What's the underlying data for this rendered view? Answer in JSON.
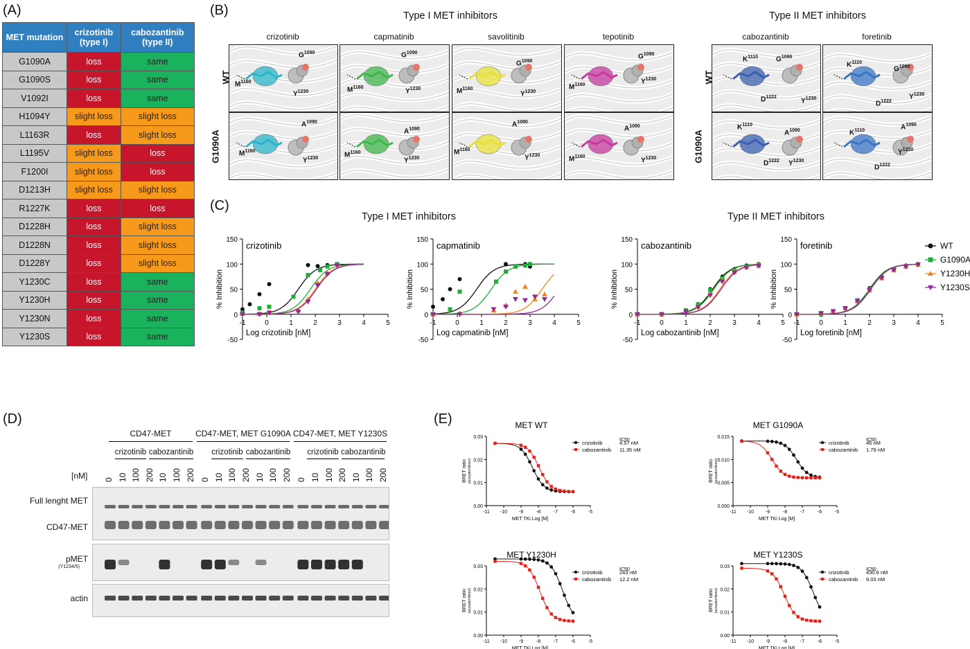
{
  "panels": {
    "A": "(A)",
    "B": "(B)",
    "C": "(C)",
    "D": "(D)",
    "E": "(E)"
  },
  "tableA": {
    "headers": [
      "MET mutation",
      "crizotinib\n(type I)",
      "cabozantinib\n(type II)"
    ],
    "header_lines": [
      [
        "MET mutation"
      ],
      [
        "crizotinib",
        "(type I)"
      ],
      [
        "cabozantinib",
        "(type II)"
      ]
    ],
    "rows": [
      [
        "G1090A",
        "loss",
        "same"
      ],
      [
        "G1090S",
        "loss",
        "same"
      ],
      [
        "V1092I",
        "loss",
        "same"
      ],
      [
        "H1094Y",
        "slight loss",
        "slight loss"
      ],
      [
        "L1163R",
        "loss",
        "slight loss"
      ],
      [
        "L1195V",
        "slight loss",
        "loss"
      ],
      [
        "F1200I",
        "slight loss",
        "loss"
      ],
      [
        "D1213H",
        "slight loss",
        "slight loss"
      ],
      [
        "R1227K",
        "loss",
        "loss"
      ],
      [
        "D1228H",
        "loss",
        "slight loss"
      ],
      [
        "D1228N",
        "loss",
        "slight loss"
      ],
      [
        "D1228Y",
        "loss",
        "slight loss"
      ],
      [
        "Y1230C",
        "loss",
        "same"
      ],
      [
        "Y1230H",
        "loss",
        "same"
      ],
      [
        "Y1230N",
        "loss",
        "same"
      ],
      [
        "Y1230S",
        "loss",
        "same"
      ]
    ],
    "colors": {
      "loss": "#c7162b",
      "slight loss": "#f79a1c",
      "same": "#1ab25c",
      "header": "#2f7fc1",
      "mutation": "#c8c8c8"
    }
  },
  "panelB": {
    "group1": "Type I MET inhibitors",
    "group2": "Type II MET inhibitors",
    "drugs": [
      "crizotinib",
      "capmatinib",
      "savolitinib",
      "tepotinib",
      "cabozantinib",
      "foretinib"
    ],
    "rows": [
      "WT",
      "G1090A"
    ],
    "ligand_colors": [
      "#2bb5c9",
      "#3fb649",
      "#e8e03a",
      "#c6399e",
      "#3a5fb0",
      "#3a75c4"
    ]
  },
  "panelC": {
    "group1": "Type I MET inhibitors",
    "group2": "Type II MET inhibitors",
    "ylabel": "% Inhibition",
    "legend": [
      "WT",
      "G1090A",
      "Y1230H",
      "Y1230S"
    ]
  },
  "panelD": {
    "groups": [
      "CD47-MET",
      "CD47-MET, MET G1090A",
      "CD47-MET, MET Y1230S"
    ],
    "drug_labels": [
      "crizotinib",
      "cabozantinib"
    ],
    "conc_label": "[nM]",
    "lanes": [
      "0",
      "10",
      "100",
      "200",
      "10",
      "100",
      "200",
      "0",
      "10",
      "100",
      "200",
      "10",
      "100",
      "200",
      "0",
      "10",
      "100",
      "200",
      "10",
      "100",
      "200"
    ],
    "rows": [
      "Full lenght MET",
      "CD47-MET",
      "pMET",
      "actin"
    ],
    "pmet_sub": "(Y1234/5)"
  },
  "panelE": {
    "ylabel": "BRET ratio",
    "ylabel_sub": "(acceptor/donor)",
    "xlabel": "MET TKi Log [M]",
    "ic50_label": "IC50"
  },
  "chart_data": [
    {
      "type": "line",
      "title": "crizotinib",
      "xlabel": "Log crizotinib [nM]",
      "ylabel": "% Inhibition",
      "xlim": [
        -1,
        5
      ],
      "ylim": [
        -50,
        150
      ],
      "xticks": [
        -1,
        0,
        1,
        2,
        3,
        4,
        5
      ],
      "yticks": [
        -50,
        0,
        50,
        100,
        150
      ],
      "series": [
        {
          "name": "WT",
          "x": [
            -1,
            -0.7,
            -0.3,
            0.1,
            1.7,
            2.1,
            2.5,
            2.9
          ],
          "y": [
            10,
            20,
            40,
            60,
            98,
            96,
            98,
            100
          ],
          "ic50": 1.3
        },
        {
          "name": "G1090A",
          "x": [
            -1,
            -0.3,
            0.1,
            1.1,
            1.7,
            2.2,
            2.5,
            2.9
          ],
          "y": [
            3,
            12,
            15,
            35,
            78,
            88,
            95,
            100
          ],
          "ic50": 1.8
        },
        {
          "name": "Y1230H",
          "x": [
            -1,
            -0.3,
            0.1,
            1.3,
            1.7,
            2.1,
            2.5,
            2.9
          ],
          "y": [
            1,
            1,
            5,
            8,
            30,
            62,
            82,
            98
          ],
          "ic50": 2.0
        },
        {
          "name": "Y1230S",
          "x": [
            -1,
            -0.3,
            0.1,
            1.3,
            1.7,
            2.1,
            2.5,
            2.9
          ],
          "y": [
            0,
            0,
            3,
            5,
            25,
            58,
            80,
            97
          ],
          "ic50": 2.05
        }
      ]
    },
    {
      "type": "line",
      "title": "capmatinib",
      "xlabel": "Log capmatinib [nM]",
      "ylabel": "% Inhibition",
      "xlim": [
        -1,
        5
      ],
      "ylim": [
        -50,
        150
      ],
      "xticks": [
        -1,
        0,
        1,
        2,
        3,
        4,
        5
      ],
      "yticks": [
        -50,
        0,
        50,
        100,
        150
      ],
      "series": [
        {
          "name": "WT",
          "x": [
            -1,
            -0.6,
            -0.3,
            0.1,
            2.0,
            2.4,
            2.8,
            3.0
          ],
          "y": [
            15,
            30,
            50,
            70,
            100,
            95,
            100,
            95
          ],
          "ic50": 0.8
        },
        {
          "name": "G1090A",
          "x": [
            -1,
            -0.3,
            0.1,
            1.6,
            2.0,
            2.4,
            2.8,
            3.0
          ],
          "y": [
            0,
            10,
            45,
            65,
            85,
            95,
            97,
            100
          ],
          "ic50": 1.4
        },
        {
          "name": "Y1230H",
          "x": [
            -1,
            0.1,
            1.5,
            2.0,
            2.4,
            2.8,
            3.2,
            3.6
          ],
          "y": [
            0,
            2,
            8,
            18,
            45,
            55,
            30,
            40
          ],
          "ic50": 3.5
        },
        {
          "name": "Y1230S",
          "x": [
            -1,
            0.1,
            1.5,
            2.0,
            2.4,
            2.8,
            3.2,
            3.6
          ],
          "y": [
            0,
            0,
            10,
            15,
            30,
            28,
            35,
            30
          ],
          "ic50": 4.2
        }
      ]
    },
    {
      "type": "line",
      "title": "cabozantinib",
      "xlabel": "Log cabozantinib [nM]",
      "ylabel": "% Inhibition",
      "xlim": [
        -1,
        5
      ],
      "ylim": [
        -50,
        150
      ],
      "xticks": [
        -1,
        0,
        1,
        2,
        3,
        4,
        5
      ],
      "yticks": [
        -50,
        0,
        50,
        100,
        150
      ],
      "series": [
        {
          "name": "WT",
          "x": [
            -1,
            0,
            1,
            1.5,
            2,
            2.5,
            3,
            3.5,
            4
          ],
          "y": [
            0,
            0,
            8,
            20,
            50,
            75,
            90,
            97,
            100
          ],
          "ic50": 2.1
        },
        {
          "name": "G1090A",
          "x": [
            -1,
            0,
            1,
            1.5,
            2,
            2.5,
            3,
            3.5,
            4
          ],
          "y": [
            0,
            0,
            8,
            20,
            48,
            72,
            88,
            95,
            99
          ],
          "ic50": 2.15
        },
        {
          "name": "Y1230H",
          "x": [
            -1,
            0,
            1,
            1.5,
            2,
            2.5,
            3,
            3.5,
            4
          ],
          "y": [
            0,
            0,
            5,
            15,
            40,
            68,
            85,
            94,
            97
          ],
          "ic50": 2.4
        },
        {
          "name": "Y1230S",
          "x": [
            -1,
            0,
            1,
            1.5,
            2,
            2.5,
            3,
            3.5,
            4
          ],
          "y": [
            0,
            0,
            5,
            14,
            38,
            65,
            83,
            93,
            96
          ],
          "ic50": 2.45
        }
      ]
    },
    {
      "type": "line",
      "title": "foretinib",
      "xlabel": "Log foretinib [nM]",
      "ylabel": "% Inhibition",
      "xlim": [
        -1,
        5
      ],
      "ylim": [
        -50,
        150
      ],
      "xticks": [
        -1,
        0,
        1,
        2,
        3,
        4,
        5
      ],
      "yticks": [
        -50,
        0,
        50,
        100,
        150
      ],
      "series": [
        {
          "name": "WT",
          "x": [
            -1,
            0,
            0.5,
            1,
            1.5,
            2,
            2.5,
            3,
            3.5,
            4
          ],
          "y": [
            0,
            0,
            5,
            12,
            28,
            52,
            75,
            90,
            97,
            100
          ],
          "ic50": 2.0
        },
        {
          "name": "G1090A",
          "x": [
            -1,
            0,
            0.5,
            1,
            1.5,
            2,
            2.5,
            3,
            3.5,
            4
          ],
          "y": [
            0,
            0,
            5,
            12,
            28,
            50,
            73,
            89,
            96,
            99
          ],
          "ic50": 2.02
        },
        {
          "name": "Y1230H",
          "x": [
            -1,
            0,
            0.5,
            1,
            1.5,
            2,
            2.5,
            3,
            3.5,
            4
          ],
          "y": [
            0,
            2,
            6,
            12,
            26,
            48,
            72,
            88,
            95,
            99
          ],
          "ic50": 2.05
        },
        {
          "name": "Y1230S",
          "x": [
            -1,
            0,
            0.5,
            1,
            1.5,
            2,
            2.5,
            3,
            3.5,
            4
          ],
          "y": [
            0,
            2,
            6,
            12,
            26,
            48,
            72,
            88,
            95,
            99
          ],
          "ic50": 2.05
        }
      ]
    },
    {
      "type": "line",
      "title": "MET WT",
      "xlabel": "MET TKi Log [M]",
      "ylabel": "BRET ratio",
      "xlim": [
        -11,
        -5
      ],
      "ylim": [
        0,
        0.03
      ],
      "xticks": [
        -11,
        -10,
        -9,
        -8,
        -7,
        -6,
        -5
      ],
      "yticks": [
        0,
        0.01,
        0.02,
        0.03
      ],
      "series": [
        {
          "name": "crizotinib",
          "ic50_text": "4.57 nM",
          "logIC50": -8.34,
          "top": 0.027,
          "bottom": 0.006
        },
        {
          "name": "cabozantinib",
          "ic50_text": "11.35 nM",
          "logIC50": -7.95,
          "top": 0.027,
          "bottom": 0.006
        }
      ]
    },
    {
      "type": "line",
      "title": "MET G1090A",
      "xlabel": "MET TKi Log [M]",
      "ylabel": "BRET ratio",
      "xlim": [
        -11,
        -5
      ],
      "ylim": [
        0,
        0.015
      ],
      "xticks": [
        -11,
        -10,
        -9,
        -8,
        -7,
        -6,
        -5
      ],
      "yticks": [
        0,
        0.005,
        0.01,
        0.015
      ],
      "series": [
        {
          "name": "crizotinib",
          "ic50_text": "46 nM",
          "logIC50": -7.34,
          "top": 0.014,
          "bottom": 0.006
        },
        {
          "name": "cabozantinib",
          "ic50_text": "1.79 nM",
          "logIC50": -8.75,
          "top": 0.014,
          "bottom": 0.006
        }
      ]
    },
    {
      "type": "line",
      "title": "MET Y1230H",
      "xlabel": "MET TKi Log [M]",
      "ylabel": "BRET ratio",
      "xlim": [
        -11,
        -5
      ],
      "ylim": [
        0,
        0.03
      ],
      "xticks": [
        -11,
        -10,
        -9,
        -8,
        -7,
        -6,
        -5
      ],
      "yticks": [
        0,
        0.01,
        0.02,
        0.03
      ],
      "series": [
        {
          "name": "crizotinib",
          "ic50_text": "243 nM",
          "logIC50": -6.61,
          "top": 0.033,
          "bottom": 0.006
        },
        {
          "name": "cabozantinib",
          "ic50_text": "12.2 nM",
          "logIC50": -7.91,
          "top": 0.032,
          "bottom": 0.006
        }
      ]
    },
    {
      "type": "line",
      "title": "MET Y1230S",
      "xlabel": "MET TKi Log [M]",
      "ylabel": "BRET ratio",
      "xlim": [
        -11,
        -5
      ],
      "ylim": [
        0,
        0.03
      ],
      "xticks": [
        -11,
        -10,
        -9,
        -8,
        -7,
        -6,
        -5
      ],
      "yticks": [
        0,
        0.01,
        0.02,
        0.03
      ],
      "series": [
        {
          "name": "crizotinib",
          "ic50_text": "430.6 nM",
          "logIC50": -6.37,
          "top": 0.031,
          "bottom": 0.006
        },
        {
          "name": "cabozantinib",
          "ic50_text": "9.03 nM",
          "logIC50": -8.04,
          "top": 0.029,
          "bottom": 0.006
        }
      ]
    }
  ]
}
